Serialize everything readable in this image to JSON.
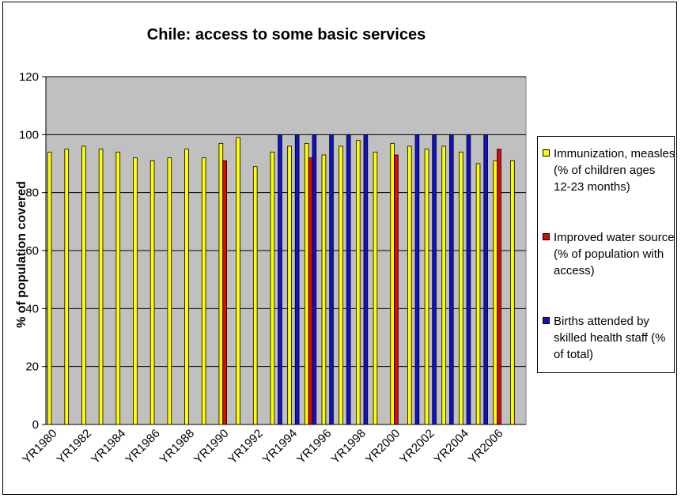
{
  "colors": {
    "plot_area": "#c0c0c0",
    "immunization": "#ffff00",
    "water": "#dd0808",
    "births": "#1010c8"
  },
  "chart_data": {
    "type": "bar",
    "title": "Chile: access to some basic services",
    "xlabel": "",
    "ylabel": "% of population covered",
    "ylim": [
      0,
      120
    ],
    "yticks": [
      0,
      20,
      40,
      60,
      80,
      100,
      120
    ],
    "grid": true,
    "legend_position": "right",
    "categories": [
      "YR1980",
      "YR1981",
      "YR1982",
      "YR1983",
      "YR1984",
      "YR1985",
      "YR1986",
      "YR1987",
      "YR1988",
      "YR1989",
      "YR1990",
      "YR1991",
      "YR1992",
      "YR1993",
      "YR1994",
      "YR1995",
      "YR1996",
      "YR1997",
      "YR1998",
      "YR1999",
      "YR2000",
      "YR2001",
      "YR2002",
      "YR2003",
      "YR2004",
      "YR2005",
      "YR2006",
      "YR2007"
    ],
    "xtick_labels": [
      "YR1980",
      "YR1982",
      "YR1984",
      "YR1986",
      "YR1988",
      "YR1990",
      "YR1992",
      "YR1994",
      "YR1996",
      "YR1998",
      "YR2000",
      "YR2002",
      "YR2004",
      "YR2006"
    ],
    "series": [
      {
        "name": "Immunization, measles (% of children ages 12-23 months)",
        "color_key": "immunization",
        "values": [
          94,
          95,
          96,
          95,
          94,
          92,
          91,
          92,
          95,
          92,
          97,
          99,
          89,
          94,
          96,
          97,
          93,
          96,
          98,
          94,
          97,
          96,
          95,
          96,
          94,
          90,
          91,
          91
        ]
      },
      {
        "name": "Improved water source (% of population with access)",
        "color_key": "water",
        "values": [
          null,
          null,
          null,
          null,
          null,
          null,
          null,
          null,
          null,
          null,
          91,
          null,
          null,
          null,
          null,
          92,
          null,
          null,
          null,
          null,
          93,
          null,
          null,
          null,
          null,
          null,
          95,
          null
        ]
      },
      {
        "name": "Births attended by skilled health staff (% of total)",
        "color_key": "births",
        "values": [
          null,
          null,
          null,
          null,
          null,
          null,
          null,
          null,
          null,
          null,
          null,
          null,
          null,
          100,
          100,
          100,
          100,
          100,
          100,
          null,
          null,
          100,
          100,
          100,
          100,
          100,
          null,
          null
        ]
      }
    ]
  },
  "legend": {
    "items": [
      {
        "label": "Immunization, measles (% of children ages 12-23 months)",
        "color_key": "immunization"
      },
      {
        "label": "Improved water source (% of population with access)",
        "color_key": "water"
      },
      {
        "label": "Births attended by skilled health staff (% of total)",
        "color_key": "births"
      }
    ]
  }
}
